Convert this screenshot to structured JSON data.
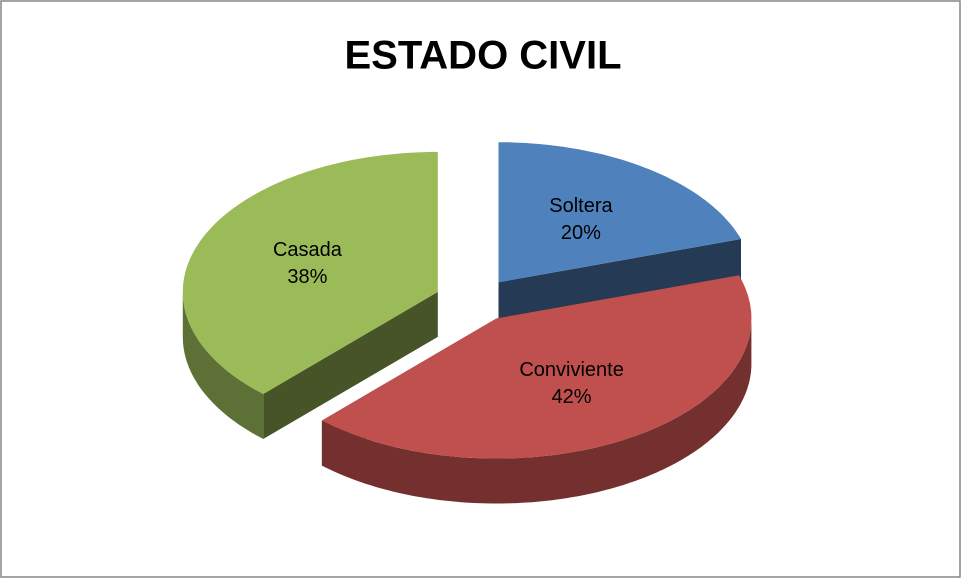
{
  "chart_data": {
    "type": "pie",
    "title": "ESTADO CIVIL",
    "categories": [
      "Soltera",
      "Conviviente",
      "Casada"
    ],
    "values": [
      20,
      42,
      38
    ],
    "value_labels": [
      "20%",
      "42%",
      "38%"
    ],
    "colors": [
      "#4f81bd",
      "#c0504d",
      "#9bbb59"
    ]
  }
}
